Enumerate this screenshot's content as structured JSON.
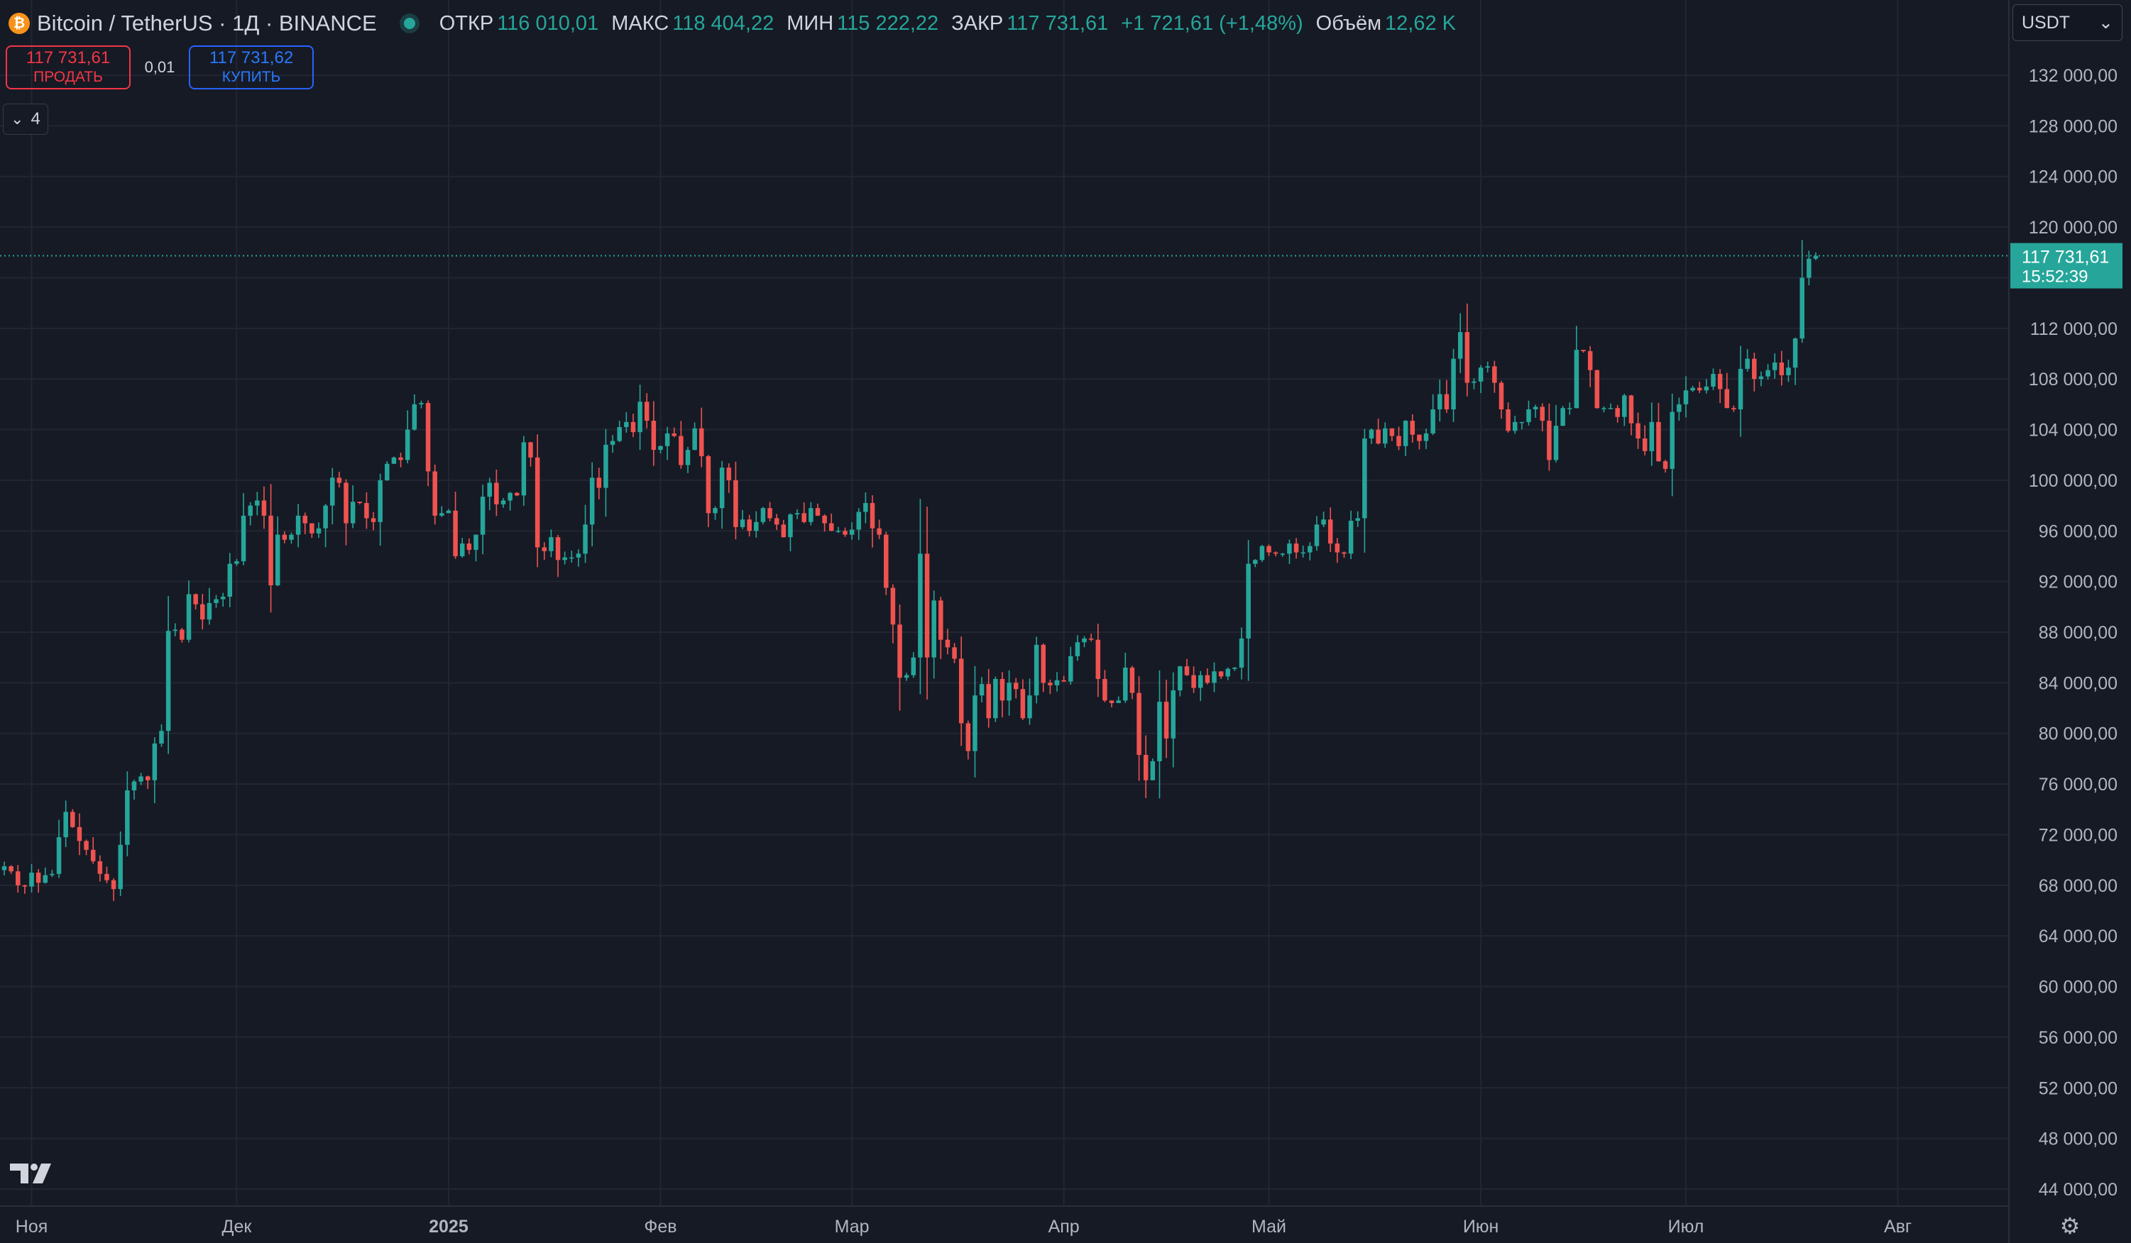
{
  "legend": {
    "coin_icon_glyph": "₿",
    "symbol_title": "Bitcoin / TetherUS · 1Д · BINANCE",
    "open_key": "ОТКР",
    "open_value": "116 010,01",
    "high_key": "МАКС",
    "high_value": "118 404,22",
    "low_key": "МИН",
    "low_value": "115 222,22",
    "close_key": "ЗАКР",
    "close_value": "117 731,61",
    "change_value": "+1 721,61 (+1,48%)",
    "volume_key": "Объём",
    "volume_value": "12,62 K"
  },
  "trade": {
    "sell_price": "117 731,61",
    "sell_label": "ПРОДАТЬ",
    "spread": "0,01",
    "buy_price": "117 731,62",
    "buy_label": "КУПИТЬ"
  },
  "indicators_toggle": {
    "count": "4"
  },
  "currency": {
    "selected": "USDT"
  },
  "current_price_label": {
    "price": "117 731,61",
    "countdown": "15:52:39"
  },
  "colors": {
    "up": "#26a69a",
    "down": "#ef5350",
    "background": "#161a25",
    "grid": "#232632",
    "text": "#d1d4dc",
    "sell": "#f23645",
    "buy": "#2962ff",
    "price_line": "#26a69a"
  },
  "icons": {
    "coin": "bitcoin-icon",
    "dropdown": "chevron-down-icon",
    "collapse": "chevron-down-icon",
    "logo": "tradingview-logo-icon",
    "settings": "gear-icon"
  },
  "chart_data": {
    "type": "candlestick",
    "symbol": "BTCUSDT",
    "interval": "1D",
    "x_start": "2024-10-28",
    "ylim": [
      42000,
      134000
    ],
    "y_ticks": [
      44000,
      48000,
      52000,
      56000,
      60000,
      64000,
      68000,
      72000,
      76000,
      80000,
      84000,
      88000,
      92000,
      96000,
      100000,
      104000,
      108000,
      112000,
      116000,
      120000,
      124000,
      128000,
      132000
    ],
    "y_tick_labels": [
      "44 000,00",
      "48 000,00",
      "52 000,00",
      "56 000,00",
      "60 000,00",
      "64 000,00",
      "68 000,00",
      "72 000,00",
      "76 000,00",
      "80 000,00",
      "84 000,00",
      "88 000,00",
      "92 000,00",
      "96 000,00",
      "100 000,00",
      "104 000,00",
      "108 000,00",
      "112 000,00",
      "116 000,00",
      "120 000,00",
      "124 000,00",
      "128 000,00",
      "132 000,00"
    ],
    "month_labels": [
      {
        "label": "Ноя",
        "date": "2024-11-01",
        "bold": false
      },
      {
        "label": "Дек",
        "date": "2024-12-01",
        "bold": false
      },
      {
        "label": "2025",
        "date": "2025-01-01",
        "bold": true
      },
      {
        "label": "Фев",
        "date": "2025-02-01",
        "bold": false
      },
      {
        "label": "Мар",
        "date": "2025-03-01",
        "bold": false
      },
      {
        "label": "Апр",
        "date": "2025-04-01",
        "bold": false
      },
      {
        "label": "Май",
        "date": "2025-05-01",
        "bold": false
      },
      {
        "label": "Июн",
        "date": "2025-06-01",
        "bold": false
      },
      {
        "label": "Июл",
        "date": "2025-07-01",
        "bold": false
      },
      {
        "label": "Авг",
        "date": "2025-08-01",
        "bold": false
      }
    ],
    "last_price": 117731.61,
    "closes": [
      69500,
      69100,
      68000,
      67900,
      69000,
      68200,
      68800,
      68900,
      71800,
      73800,
      72600,
      71500,
      70800,
      69900,
      68900,
      68400,
      67700,
      71200,
      75500,
      76200,
      76600,
      76300,
      79200,
      80200,
      88100,
      88200,
      87400,
      91000,
      90200,
      89000,
      90300,
      90600,
      90800,
      93400,
      93600,
      97200,
      98000,
      98400,
      97200,
      91700,
      95700,
      95300,
      95700,
      97200,
      96600,
      95800,
      96200,
      98000,
      100200,
      99800,
      96600,
      98300,
      98200,
      97000,
      96700,
      100000,
      101300,
      101800,
      101600,
      104000,
      106000,
      106100,
      100700,
      97200,
      97400,
      97600,
      94000,
      95000,
      94500,
      95700,
      98700,
      99800,
      98100,
      98400,
      99000,
      98800,
      103000,
      101800,
      94700,
      94400,
      95500,
      93700,
      93900,
      93900,
      94200,
      96500,
      100200,
      99400,
      102800,
      103100,
      104200,
      104600,
      103800,
      106200,
      104700,
      102400,
      102700,
      103700,
      103500,
      101200,
      102400,
      104100,
      101900,
      97400,
      97800,
      101000,
      100000,
      96300,
      96900,
      96000,
      96700,
      97800,
      97000,
      96500,
      95500,
      97300,
      97400,
      96700,
      97800,
      97200,
      96600,
      96000,
      96000,
      95700,
      96100,
      97500,
      98200,
      96200,
      95700,
      91500,
      88600,
      84400,
      84600,
      86000,
      94200,
      86000,
      90500,
      87400,
      86800,
      85900,
      80800,
      78600,
      83000,
      83900,
      81200,
      84300,
      82600,
      84000,
      83500,
      81200,
      83000,
      87000,
      84000,
      83800,
      84200,
      84100,
      86100,
      87200,
      87500,
      87400,
      84300,
      82600,
      82400,
      82600,
      85200,
      83200,
      78300,
      76300,
      77800,
      82500,
      79600,
      83400,
      85300,
      84600,
      83600,
      84600,
      84000,
      84900,
      84500,
      85100,
      85200,
      87500,
      93400,
      93700,
      94800,
      94300,
      94200,
      94200,
      95000,
      94300,
      94300,
      94800,
      96500,
      96900,
      95000,
      94300,
      94200,
      96800,
      97000,
      103300,
      104000,
      102900,
      104100,
      103500,
      102700,
      104700,
      103600,
      103100,
      103700,
      105600,
      106800,
      105600,
      109600,
      111700,
      107700,
      107800,
      108900,
      109000,
      107700,
      105600,
      103900,
      104600,
      104600,
      105600,
      105800,
      104700,
      101600,
      104300,
      105700,
      105700,
      110300,
      110200,
      108700,
      105700,
      105700,
      105700,
      105000,
      106700,
      104500,
      103300,
      102300,
      104600,
      101500,
      100900,
      105400,
      106000,
      107100,
      107300,
      107100,
      107400,
      108400,
      107200,
      105700,
      105600,
      108800,
      109600,
      108000,
      108200,
      108700,
      109300,
      108300,
      108900,
      111200,
      116000,
      117500,
      117731.61
    ]
  }
}
